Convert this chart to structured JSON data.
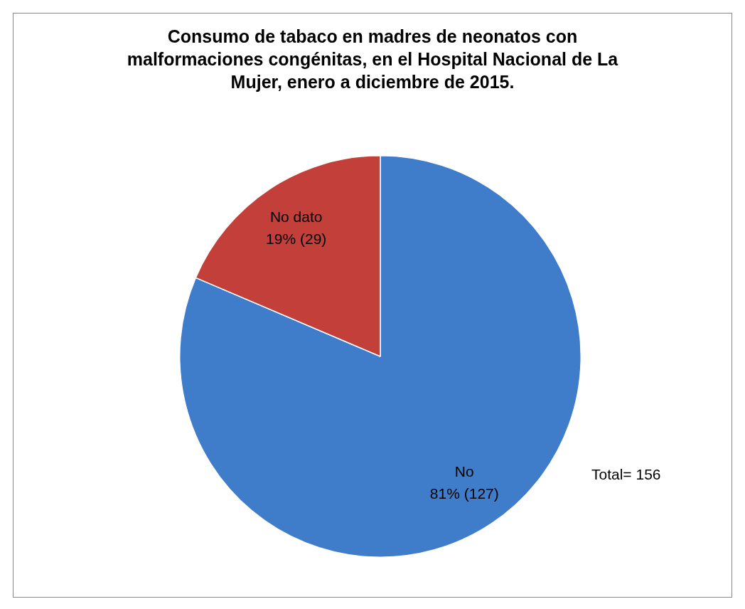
{
  "chart_data": {
    "type": "pie",
    "title": "Consumo de tabaco en madres de neonatos con malformaciones congénitas, en el Hospital Nacional de La Mujer, enero a diciembre de 2015.",
    "categories": [
      "No",
      "No dato"
    ],
    "values": [
      127,
      29
    ],
    "colors": [
      "#3f7cc9",
      "#c23f3a"
    ],
    "value_labels": [
      "81% (127)",
      "19% (29)"
    ],
    "annotations": [
      "Total= 156"
    ]
  }
}
